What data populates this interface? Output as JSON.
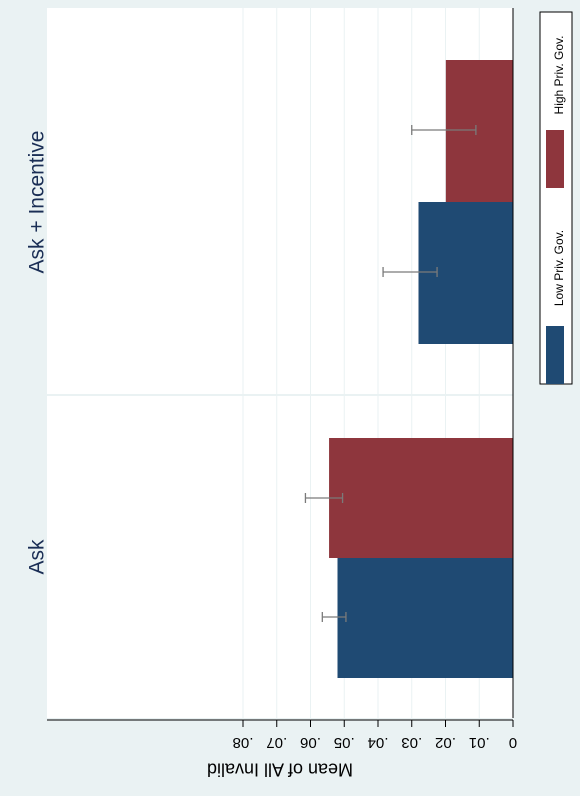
{
  "chart_data": {
    "type": "bar",
    "orientation": "rotated-90",
    "categories": [
      "Ask",
      "Ask + Incentive"
    ],
    "ylabel": "Mean of All Invalid",
    "ylim": [
      0,
      0.08
    ],
    "yticks": [
      0,
      0.01,
      0.02,
      0.03,
      0.04,
      0.05,
      0.06,
      0.07,
      0.08
    ],
    "ytick_labels": [
      "0",
      ".01",
      ".02",
      ".03",
      ".04",
      ".05",
      ".06",
      ".07",
      ".08"
    ],
    "grid": true,
    "legend_position": "right",
    "series": [
      {
        "name": "Low Priv. Gov.",
        "color": "#1f4a73",
        "values": [
          0.052,
          0.028
        ],
        "ci_low": [
          0.0495,
          0.0225
        ],
        "ci_high": [
          0.0565,
          0.0385
        ]
      },
      {
        "name": "High Priv. Gov.",
        "color": "#8e363d",
        "values": [
          0.0545,
          0.0199
        ],
        "ci_low": [
          0.0505,
          0.011
        ],
        "ci_high": [
          0.0615,
          0.03
        ]
      }
    ]
  },
  "colors": {
    "outer_background": "#eaf2f3",
    "plot_background": "#ffffff",
    "panel_label": "#1a2e55",
    "error_bar": "#7a7a7a",
    "grid": "#eaf2f3"
  }
}
